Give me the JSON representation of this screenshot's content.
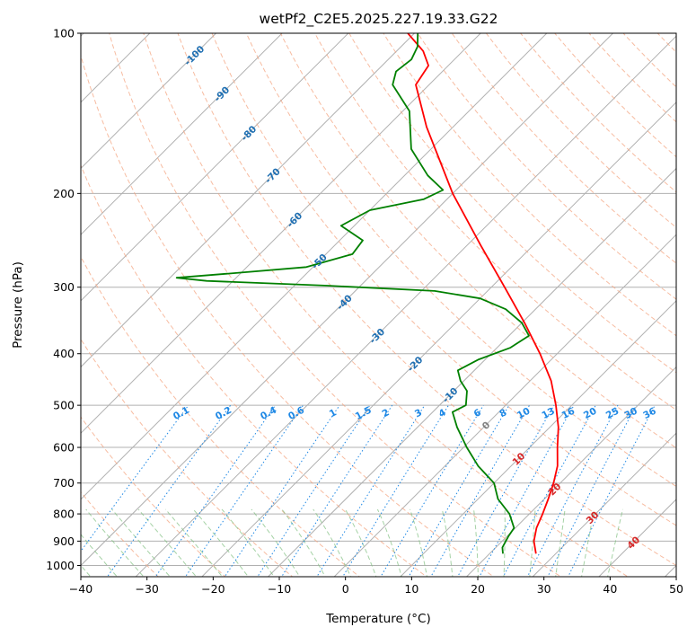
{
  "chart_data": {
    "type": "line",
    "title": "wetPf2_C2E5.2025.227.19.33.G22",
    "xlabel": "Temperature (°C)",
    "ylabel": "Pressure (hPa)",
    "xlim": [
      -40,
      50
    ],
    "ylim": [
      1050,
      100
    ],
    "yscale": "log",
    "skew": true,
    "grid": true,
    "x_ticks": [
      -40,
      -30,
      -20,
      -10,
      0,
      10,
      20,
      30,
      40,
      50
    ],
    "x_tick_labels": [
      "−40",
      "−30",
      "−20",
      "−10",
      "0",
      "10",
      "20",
      "30",
      "40",
      "50"
    ],
    "y_ticks": [
      100,
      200,
      300,
      400,
      500,
      600,
      700,
      800,
      900,
      1000
    ],
    "y_tick_labels": [
      "100",
      "200",
      "300",
      "400",
      "500",
      "600",
      "700",
      "800",
      "900",
      "1000"
    ],
    "colors": {
      "temperature": "#ff0000",
      "dewpoint": "#008000",
      "dry_adiabat": "#f4a582",
      "moist_adiabat": "#7fbf7f",
      "mixing_ratio": "#1e88e5",
      "isotherm_label": "#1f6fb2",
      "isotherm_label_warm": "#d62728",
      "zero_label": "#808080"
    },
    "series": [
      {
        "role": "temperature",
        "points": [
          {
            "p": 950,
            "t": 27.0
          },
          {
            "p": 900,
            "t": 24.8
          },
          {
            "p": 850,
            "t": 23.2
          },
          {
            "p": 800,
            "t": 22.0
          },
          {
            "p": 750,
            "t": 20.6
          },
          {
            "p": 700,
            "t": 19.0
          },
          {
            "p": 650,
            "t": 17.0
          },
          {
            "p": 600,
            "t": 14.2
          },
          {
            "p": 550,
            "t": 11.3
          },
          {
            "p": 500,
            "t": 7.6
          },
          {
            "p": 450,
            "t": 3.2
          },
          {
            "p": 400,
            "t": -2.6
          },
          {
            "p": 350,
            "t": -9.6
          },
          {
            "p": 300,
            "t": -18.0
          },
          {
            "p": 250,
            "t": -28.0
          },
          {
            "p": 200,
            "t": -40.0
          },
          {
            "p": 175,
            "t": -46.5
          },
          {
            "p": 150,
            "t": -54.0
          },
          {
            "p": 125,
            "t": -62.0
          },
          {
            "p": 115,
            "t": -63.0
          },
          {
            "p": 108,
            "t": -66.0
          },
          {
            "p": 100,
            "t": -71.0
          }
        ]
      },
      {
        "role": "dewpoint",
        "points": [
          {
            "p": 950,
            "t": 22.0
          },
          {
            "p": 925,
            "t": 21.0
          },
          {
            "p": 880,
            "t": 20.2
          },
          {
            "p": 850,
            "t": 19.8
          },
          {
            "p": 800,
            "t": 17.0
          },
          {
            "p": 750,
            "t": 13.0
          },
          {
            "p": 700,
            "t": 10.0
          },
          {
            "p": 650,
            "t": 5.0
          },
          {
            "p": 600,
            "t": 0.5
          },
          {
            "p": 550,
            "t": -4.0
          },
          {
            "p": 515,
            "t": -7.0
          },
          {
            "p": 500,
            "t": -6.0
          },
          {
            "p": 470,
            "t": -8.0
          },
          {
            "p": 450,
            "t": -10.5
          },
          {
            "p": 430,
            "t": -12.5
          },
          {
            "p": 410,
            "t": -11.0
          },
          {
            "p": 390,
            "t": -8.0
          },
          {
            "p": 370,
            "t": -7.0
          },
          {
            "p": 350,
            "t": -10.0
          },
          {
            "p": 330,
            "t": -14.5
          },
          {
            "p": 315,
            "t": -20.0
          },
          {
            "p": 305,
            "t": -28.0
          },
          {
            "p": 298,
            "t": -45.0
          },
          {
            "p": 292,
            "t": -64.0
          },
          {
            "p": 288,
            "t": -69.0
          },
          {
            "p": 283,
            "t": -62.0
          },
          {
            "p": 275,
            "t": -51.0
          },
          {
            "p": 260,
            "t": -46.0
          },
          {
            "p": 245,
            "t": -46.5
          },
          {
            "p": 230,
            "t": -52.0
          },
          {
            "p": 215,
            "t": -50.0
          },
          {
            "p": 205,
            "t": -43.5
          },
          {
            "p": 197,
            "t": -42.0
          },
          {
            "p": 185,
            "t": -46.5
          },
          {
            "p": 165,
            "t": -53.0
          },
          {
            "p": 140,
            "t": -59.0
          },
          {
            "p": 125,
            "t": -65.5
          },
          {
            "p": 118,
            "t": -67.0
          },
          {
            "p": 112,
            "t": -66.5
          },
          {
            "p": 106,
            "t": -67.5
          },
          {
            "p": 100,
            "t": -69.5
          }
        ]
      }
    ],
    "isotherm_labels": [
      {
        "text": "-100",
        "t": -100,
        "p": 110
      },
      {
        "text": "-90",
        "t": -90,
        "p": 130
      },
      {
        "text": "-80",
        "t": -80,
        "p": 154
      },
      {
        "text": "-70",
        "t": -70,
        "p": 185
      },
      {
        "text": "-60",
        "t": -60,
        "p": 224
      },
      {
        "text": "-50",
        "t": -50,
        "p": 268
      },
      {
        "text": "-40",
        "t": -40,
        "p": 320
      },
      {
        "text": "-30",
        "t": -30,
        "p": 370
      },
      {
        "text": "-20",
        "t": -20,
        "p": 418
      },
      {
        "text": "-10",
        "t": -10,
        "p": 478
      },
      {
        "text": "0",
        "t": 0,
        "p": 545
      },
      {
        "text": "10",
        "t": 10,
        "p": 630
      },
      {
        "text": "20",
        "t": 20,
        "p": 718
      },
      {
        "text": "30",
        "t": 30,
        "p": 812
      },
      {
        "text": "40",
        "t": 40,
        "p": 905
      }
    ],
    "mixing_ratio_labels": [
      "0.1",
      "0.2",
      "0.4",
      "0.6",
      "1",
      "1.5",
      "2",
      "3",
      "4",
      "6",
      "8",
      "10",
      "13",
      "16",
      "20",
      "25",
      "30",
      "36"
    ]
  }
}
